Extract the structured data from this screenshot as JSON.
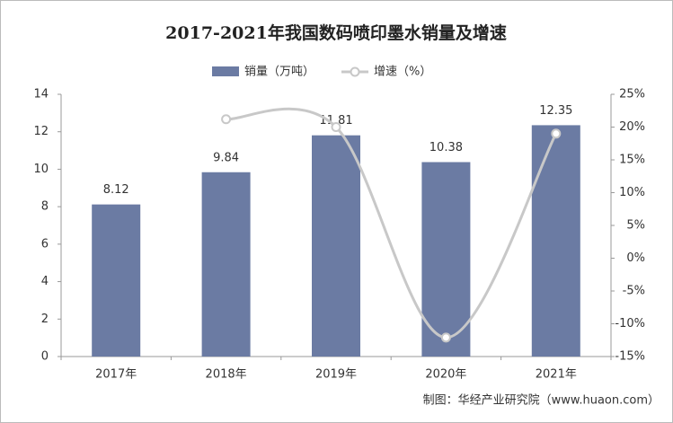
{
  "chart_data": {
    "type": "bar-line",
    "title": "2017-2021年我国数码喷印墨水销量及增速",
    "categories": [
      "2017年",
      "2018年",
      "2019年",
      "2020年",
      "2021年"
    ],
    "series": [
      {
        "name": "销量（万吨）",
        "type": "bar",
        "color": "#6b7ba3",
        "values": [
          8.12,
          9.84,
          11.81,
          10.38,
          12.35
        ]
      },
      {
        "name": "增速（%）",
        "type": "line",
        "axis": "y2",
        "color": "#c8c8c8",
        "values": [
          null,
          21.2,
          20.0,
          -12.1,
          19.0
        ]
      }
    ],
    "ylim": [
      0,
      14
    ],
    "yticks": [
      0,
      2,
      4,
      6,
      8,
      10,
      12,
      14
    ],
    "y2lim": [
      -15,
      25
    ],
    "y2ticks": [
      {
        "value": -15,
        "label": "-15%"
      },
      {
        "value": -10,
        "label": "-10%"
      },
      {
        "value": -5,
        "label": "-5%"
      },
      {
        "value": 0,
        "label": "0%"
      },
      {
        "value": 5,
        "label": "5%"
      },
      {
        "value": 10,
        "label": "10%"
      },
      {
        "value": 15,
        "label": "15%"
      },
      {
        "value": 20,
        "label": "20%"
      },
      {
        "value": 25,
        "label": "25%"
      }
    ],
    "legend": "top",
    "source": "制图：华经产业研究院（www.huaon.com）"
  }
}
